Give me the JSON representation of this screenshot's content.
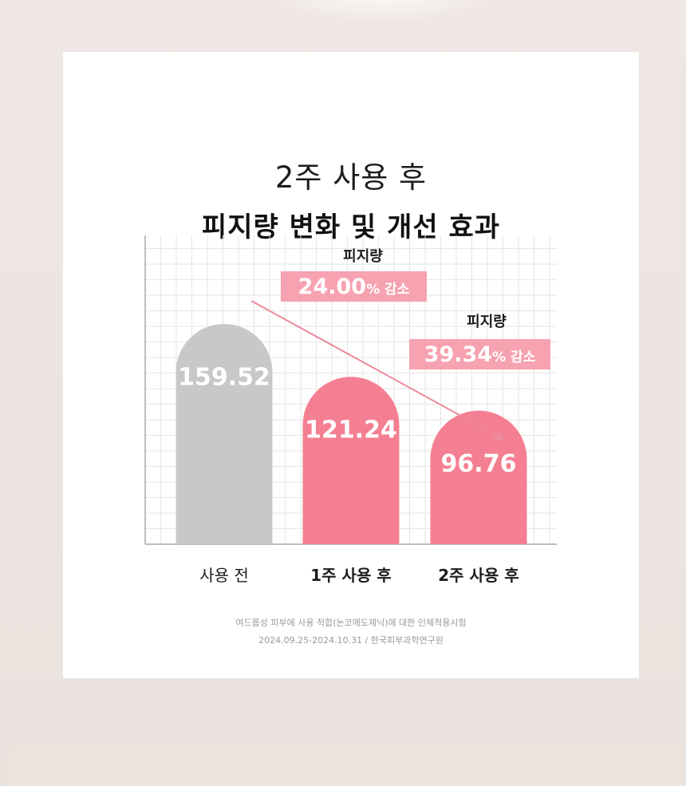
{
  "title": {
    "line1": "2주 사용 후",
    "line2": "피지량 변화 및 개선 효과"
  },
  "chart_data": {
    "type": "bar",
    "categories": [
      "사용 전",
      "1주 사용 후",
      "2주 사용 후"
    ],
    "values": [
      159.52,
      121.24,
      96.76
    ],
    "value_labels": [
      "159.52",
      "121.24",
      "96.76"
    ],
    "ylim": [
      0,
      200
    ],
    "grid": true,
    "colors": {
      "baseline": "#c8c8c8",
      "treated": "#f57f92",
      "label_box": "#f7a2b0",
      "arrow": "#ee8a9b",
      "grid": "#e6e6e6"
    },
    "annotations": [
      {
        "label": "피지량",
        "value": "24.00",
        "unit": "% 감소",
        "category": "1주 사용 후"
      },
      {
        "label": "피지량",
        "value": "39.34",
        "unit": "% 감소",
        "category": "2주 사용 후"
      }
    ]
  },
  "source": {
    "line1": "여드름성 피부에 사용 적합(논코메도제닉)에 대한 인체적용시험",
    "line2": "2024.09.25-2024.10.31 / 한국피부과학연구원"
  }
}
